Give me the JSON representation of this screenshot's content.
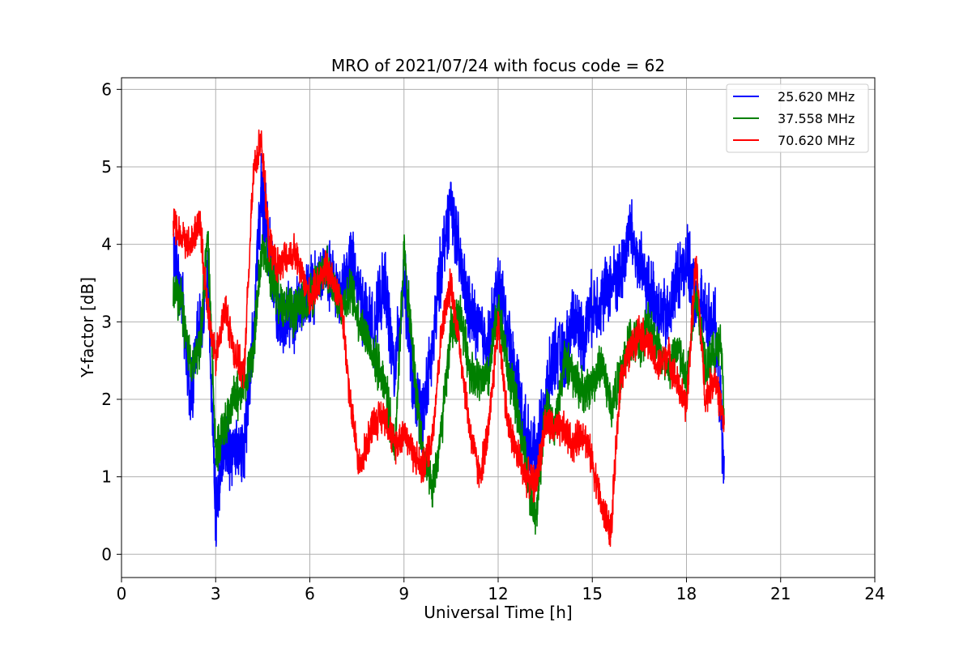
{
  "chart_data": {
    "type": "line",
    "title": "MRO of 2021/07/24 with focus code = 62",
    "xlabel": "Universal Time [h]",
    "ylabel": "Y-factor [dB]",
    "xlim": [
      0,
      24
    ],
    "ylim": [
      -0.3,
      6.15
    ],
    "xticks": [
      0,
      3,
      6,
      9,
      12,
      15,
      18,
      21,
      24
    ],
    "yticks": [
      0,
      1,
      2,
      3,
      4,
      5,
      6
    ],
    "grid": true,
    "legend_position": "top-right",
    "series": [
      {
        "name": "25.620 MHz",
        "color": "#0000ff",
        "x": [
          1.65,
          1.9,
          2.2,
          2.5,
          2.75,
          3.0,
          3.3,
          3.6,
          3.9,
          4.2,
          4.45,
          4.7,
          5.0,
          5.5,
          6.0,
          6.5,
          7.0,
          7.3,
          7.6,
          8.0,
          8.4,
          8.7,
          9.0,
          9.3,
          9.6,
          9.9,
          10.2,
          10.5,
          10.8,
          11.1,
          11.4,
          11.7,
          12.0,
          12.3,
          12.6,
          12.9,
          13.2,
          13.5,
          13.8,
          14.1,
          14.4,
          14.7,
          15.0,
          15.3,
          15.6,
          15.9,
          16.2,
          16.5,
          16.8,
          17.1,
          17.4,
          17.7,
          18.0,
          18.3,
          18.6,
          18.9,
          19.1,
          19.2
        ],
        "y": [
          3.9,
          3.4,
          2.1,
          2.9,
          3.5,
          0.5,
          1.5,
          1.2,
          1.4,
          2.8,
          4.7,
          4.0,
          3.0,
          3.1,
          3.4,
          3.6,
          3.4,
          3.8,
          3.3,
          2.9,
          3.5,
          2.3,
          3.6,
          2.1,
          1.8,
          2.6,
          3.8,
          4.6,
          3.7,
          3.1,
          2.9,
          2.7,
          3.5,
          2.9,
          2.2,
          1.5,
          1.2,
          2.0,
          2.6,
          2.5,
          3.1,
          2.8,
          3.2,
          3.3,
          3.5,
          3.6,
          4.2,
          3.7,
          3.4,
          3.2,
          3.0,
          3.6,
          3.8,
          3.3,
          3.1,
          3.0,
          1.8,
          1.0
        ]
      },
      {
        "name": "37.558 MHz",
        "color": "#008000",
        "x": [
          1.65,
          1.9,
          2.2,
          2.5,
          2.75,
          3.0,
          3.3,
          3.6,
          3.9,
          4.2,
          4.45,
          4.7,
          5.0,
          5.5,
          6.0,
          6.5,
          7.0,
          7.3,
          7.6,
          8.0,
          8.4,
          8.7,
          9.0,
          9.3,
          9.6,
          9.9,
          10.2,
          10.5,
          10.8,
          11.1,
          11.4,
          11.7,
          12.0,
          12.3,
          12.6,
          12.9,
          13.2,
          13.5,
          13.8,
          14.1,
          14.4,
          14.7,
          15.0,
          15.3,
          15.6,
          15.9,
          16.2,
          16.5,
          16.8,
          17.1,
          17.4,
          17.7,
          18.0,
          18.3,
          18.6,
          18.9,
          19.1,
          19.2
        ],
        "y": [
          3.4,
          3.3,
          2.4,
          2.7,
          4.1,
          1.3,
          1.7,
          2.0,
          2.2,
          2.6,
          3.9,
          3.7,
          3.3,
          3.1,
          3.3,
          3.7,
          3.2,
          3.4,
          3.0,
          2.6,
          2.2,
          1.3,
          3.9,
          2.5,
          1.3,
          0.8,
          1.6,
          2.9,
          3.1,
          2.4,
          2.2,
          2.3,
          3.2,
          2.4,
          1.9,
          1.1,
          0.4,
          1.9,
          1.6,
          2.5,
          2.3,
          2.1,
          2.2,
          2.5,
          1.9,
          2.3,
          2.8,
          2.7,
          3.0,
          2.7,
          2.3,
          2.7,
          2.2,
          3.4,
          2.5,
          2.6,
          2.8,
          1.7
        ]
      },
      {
        "name": "70.620 MHz",
        "color": "#ff0000",
        "x": [
          1.65,
          1.9,
          2.2,
          2.5,
          2.75,
          3.0,
          3.3,
          3.6,
          3.9,
          4.2,
          4.45,
          4.7,
          5.0,
          5.5,
          6.0,
          6.5,
          7.0,
          7.3,
          7.6,
          8.0,
          8.4,
          8.7,
          9.0,
          9.3,
          9.6,
          9.9,
          10.2,
          10.5,
          10.8,
          11.1,
          11.4,
          11.7,
          12.0,
          12.3,
          12.6,
          12.9,
          13.2,
          13.5,
          13.8,
          14.1,
          14.4,
          14.7,
          15.0,
          15.3,
          15.6,
          15.9,
          16.2,
          16.5,
          16.8,
          17.1,
          17.4,
          17.7,
          18.0,
          18.3,
          18.6,
          18.9,
          19.1,
          19.2
        ],
        "y": [
          4.3,
          4.1,
          4.0,
          4.3,
          3.1,
          2.5,
          3.2,
          2.6,
          2.3,
          4.9,
          5.4,
          4.0,
          3.7,
          3.9,
          3.3,
          3.7,
          3.3,
          1.9,
          1.1,
          1.7,
          1.8,
          1.4,
          1.6,
          1.3,
          1.1,
          1.5,
          2.9,
          3.5,
          2.6,
          1.6,
          1.0,
          1.6,
          3.0,
          1.7,
          1.3,
          1.0,
          0.9,
          1.7,
          1.6,
          1.6,
          1.4,
          1.6,
          1.2,
          0.6,
          0.3,
          2.3,
          2.6,
          2.9,
          2.7,
          2.4,
          2.6,
          2.2,
          1.9,
          3.8,
          2.0,
          2.3,
          1.9,
          1.6
        ]
      }
    ]
  }
}
